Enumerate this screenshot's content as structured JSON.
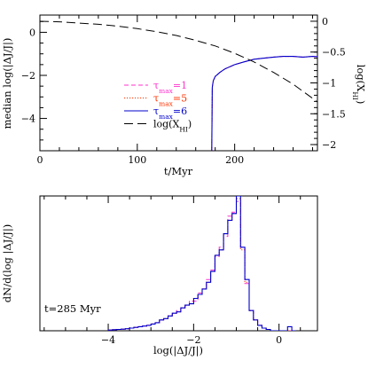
{
  "chart_data": [
    {
      "type": "line",
      "xlabel": "t/Myr",
      "ylabel": "median log(|ΔJ/J|)",
      "y2label": "log(X",
      "y2label_sub": "HI",
      "y2label_close": ")",
      "xlim": [
        0,
        285
      ],
      "ylim": [
        -5.5,
        0.8
      ],
      "y2lim": [
        -2.1,
        0.1
      ],
      "xticks": [
        0,
        100,
        200
      ],
      "yticks": [
        0,
        -2,
        -4
      ],
      "y2ticks": [
        0,
        -0.5,
        -1,
        -1.5,
        -2
      ],
      "y2ticklabels": [
        "0",
        "−0.5",
        "−1",
        "−1.5",
        "−2"
      ],
      "legend_position": "center",
      "series": [
        {
          "name_main": "τ",
          "name_sub": "max",
          "name_eq": "=1",
          "color": "#ff33cc",
          "dash": "dashed",
          "x": [
            176.5,
            177,
            178,
            180,
            185,
            190,
            200,
            210,
            220,
            230,
            240,
            250,
            260,
            270,
            280,
            285
          ],
          "y": [
            -5.5,
            -2.55,
            -2.25,
            -2.05,
            -1.85,
            -1.7,
            -1.5,
            -1.37,
            -1.25,
            -1.2,
            -1.15,
            -1.12,
            -1.12,
            -1.15,
            -1.12,
            -1.13
          ]
        },
        {
          "name_main": "τ",
          "name_sub": "max",
          "name_eq": "=5",
          "color": "#ff3300",
          "dash": "dotted",
          "x": [
            176.5,
            177,
            178,
            180,
            185,
            190,
            200,
            210,
            220,
            230,
            240,
            250,
            260,
            270,
            280,
            285
          ],
          "y": [
            -5.5,
            -2.55,
            -2.25,
            -2.05,
            -1.85,
            -1.7,
            -1.5,
            -1.37,
            -1.25,
            -1.2,
            -1.15,
            -1.12,
            -1.12,
            -1.15,
            -1.12,
            -1.13
          ]
        },
        {
          "name_main": "τ",
          "name_sub": "max",
          "name_eq": "=6",
          "color": "#0000cc",
          "dash": "solid",
          "x": [
            176.5,
            177,
            178,
            180,
            185,
            190,
            200,
            210,
            220,
            230,
            240,
            250,
            260,
            270,
            280,
            285
          ],
          "y": [
            -5.5,
            -2.55,
            -2.25,
            -2.05,
            -1.85,
            -1.7,
            -1.5,
            -1.37,
            -1.25,
            -1.2,
            -1.15,
            -1.12,
            -1.12,
            -1.15,
            -1.12,
            -1.13
          ]
        },
        {
          "name_main": "log(X",
          "name_sub": "HI",
          "name_eq": ")",
          "color": "#000000",
          "dash": "longdash",
          "axis": "right",
          "x": [
            0,
            20,
            40,
            60,
            80,
            100,
            120,
            140,
            160,
            180,
            200,
            220,
            240,
            260,
            280,
            285
          ],
          "y": [
            0.0,
            -0.01,
            -0.03,
            -0.05,
            -0.08,
            -0.12,
            -0.17,
            -0.23,
            -0.31,
            -0.4,
            -0.52,
            -0.66,
            -0.83,
            -1.02,
            -1.25,
            -1.31
          ]
        }
      ]
    },
    {
      "type": "histogram",
      "xlabel": "log(|ΔJ/J|)",
      "ylabel": "dN/d(log |ΔJ/J|)",
      "annotation": "t=285 Myr",
      "xlim": [
        -5.6,
        0.9
      ],
      "ylim": [
        0,
        1.0
      ],
      "xticks": [
        -4,
        -2,
        0
      ],
      "xticklabels": [
        "−4",
        "−2",
        "0"
      ],
      "bin_edges": [
        -4.0,
        -3.9,
        -3.8,
        -3.7,
        -3.6,
        -3.5,
        -3.4,
        -3.3,
        -3.2,
        -3.1,
        -3.0,
        -2.9,
        -2.8,
        -2.7,
        -2.6,
        -2.5,
        -2.4,
        -2.3,
        -2.2,
        -2.1,
        -2.0,
        -1.9,
        -1.8,
        -1.7,
        -1.6,
        -1.5,
        -1.4,
        -1.3,
        -1.2,
        -1.1,
        -1.0,
        -0.9,
        -0.8,
        -0.7,
        -0.6,
        -0.5,
        -0.4,
        -0.3,
        -0.2,
        -0.1,
        0.0,
        0.1,
        0.2,
        0.3,
        0.4
      ],
      "series": [
        {
          "name": "τmax=1",
          "color": "#ff33cc",
          "dash": "dashed",
          "values": [
            0.005,
            0.008,
            0.01,
            0.012,
            0.015,
            0.02,
            0.025,
            0.03,
            0.035,
            0.04,
            0.05,
            0.06,
            0.08,
            0.09,
            0.11,
            0.13,
            0.15,
            0.17,
            0.19,
            0.22,
            0.22,
            0.28,
            0.31,
            0.38,
            0.45,
            0.55,
            0.62,
            0.7,
            0.85,
            0.88,
            0.96,
            0.62,
            0.35,
            0.15,
            0.08,
            0.04,
            0.02,
            0.01,
            0.0,
            0.0,
            0.0,
            0.0,
            0.0,
            0.0
          ]
        },
        {
          "name": "τmax=5",
          "color": "#ff3300",
          "dash": "dotted",
          "values": [
            0.005,
            0.008,
            0.01,
            0.012,
            0.015,
            0.02,
            0.025,
            0.03,
            0.035,
            0.04,
            0.05,
            0.06,
            0.08,
            0.09,
            0.11,
            0.13,
            0.14,
            0.17,
            0.19,
            0.2,
            0.24,
            0.27,
            0.31,
            0.36,
            0.44,
            0.56,
            0.6,
            0.72,
            0.82,
            0.87,
            0.98,
            0.6,
            0.36,
            0.15,
            0.08,
            0.04,
            0.02,
            0.01,
            0.0,
            0.0,
            0.0,
            0.0,
            0.0,
            0.0
          ]
        },
        {
          "name": "τmax=6",
          "color": "#0000cc",
          "dash": "solid",
          "values": [
            0.005,
            0.008,
            0.01,
            0.012,
            0.015,
            0.02,
            0.025,
            0.03,
            0.035,
            0.04,
            0.05,
            0.06,
            0.08,
            0.09,
            0.11,
            0.13,
            0.14,
            0.17,
            0.19,
            0.2,
            0.24,
            0.27,
            0.31,
            0.36,
            0.44,
            0.56,
            0.6,
            0.72,
            0.82,
            0.87,
            1.0,
            0.62,
            0.38,
            0.15,
            0.08,
            0.04,
            0.02,
            0.01,
            0.0,
            0.0,
            0.0,
            0.0,
            0.03,
            0.0
          ]
        }
      ]
    }
  ]
}
